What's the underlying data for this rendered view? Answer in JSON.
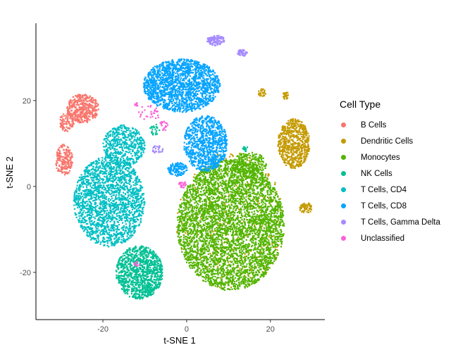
{
  "chart_data": {
    "type": "scatter",
    "title": "",
    "xlabel": "t-SNE 1",
    "ylabel": "t-SNE 2",
    "xlim": [
      -36,
      33
    ],
    "ylim": [
      -31,
      38
    ],
    "xticks": [
      -20,
      0,
      20
    ],
    "yticks": [
      -20,
      0,
      20
    ],
    "xtick_labels": [
      "-20",
      "0",
      "20"
    ],
    "ytick_labels": [
      "-20",
      "0",
      "20"
    ],
    "grid": false,
    "legend_position": "right",
    "legend_title": "Cell Type",
    "series": [
      {
        "name": "B Cells",
        "color": "#F8766D",
        "clusters": [
          {
            "x": -24.8,
            "y": 18.2,
            "rx": 3.8,
            "ry": 3.4,
            "n": 420
          },
          {
            "x": -28.7,
            "y": 15.0,
            "rx": 1.8,
            "ry": 2.2,
            "n": 90
          },
          {
            "x": -29.3,
            "y": 6.2,
            "rx": 2.1,
            "ry": 3.6,
            "n": 200
          }
        ]
      },
      {
        "name": "Dendritic Cells",
        "color": "#C49A00",
        "clusters": [
          {
            "x": 25.6,
            "y": 10.0,
            "rx": 3.8,
            "ry": 5.8,
            "n": 650
          },
          {
            "x": 18.0,
            "y": 21.8,
            "rx": 0.9,
            "ry": 0.9,
            "n": 30
          },
          {
            "x": 23.7,
            "y": 21.2,
            "rx": 0.8,
            "ry": 0.9,
            "n": 30
          },
          {
            "x": 28.5,
            "y": -5.0,
            "rx": 1.6,
            "ry": 1.2,
            "n": 60
          },
          {
            "x": 10.5,
            "y": -8.0,
            "rx": 13.0,
            "ry": 16.0,
            "n": 320
          }
        ]
      },
      {
        "name": "Monocytes",
        "color": "#53B400",
        "clusters": [
          {
            "x": 10.5,
            "y": -9.0,
            "rx": 12.8,
            "ry": 15.2,
            "n": 4200
          },
          {
            "x": 15.0,
            "y": 5.0,
            "rx": 4.0,
            "ry": 3.0,
            "n": 250
          }
        ]
      },
      {
        "name": "NK Cells",
        "color": "#00C094",
        "clusters": [
          {
            "x": -11.3,
            "y": -20.0,
            "rx": 5.6,
            "ry": 6.2,
            "n": 1050
          },
          {
            "x": -7.6,
            "y": 13.2,
            "rx": 1.2,
            "ry": 1.3,
            "n": 25
          },
          {
            "x": 14.0,
            "y": 8.7,
            "rx": 0.8,
            "ry": 0.8,
            "n": 15
          }
        ]
      },
      {
        "name": "T Cells, CD4",
        "color": "#00B6EB",
        "clusters": [],
        "note_color": "#00BFC4",
        "real_clusters": [
          {
            "x": -18.5,
            "y": -3.5,
            "rx": 8.5,
            "ry": 10.5,
            "n": 1900
          },
          {
            "x": -15.0,
            "y": 9.5,
            "rx": 5.0,
            "ry": 4.8,
            "n": 500
          }
        ]
      },
      {
        "name": "T Cells, CD8",
        "color": "#06A4FF",
        "clusters": [
          {
            "x": -1.2,
            "y": 23.5,
            "rx": 9.2,
            "ry": 6.2,
            "n": 1700
          },
          {
            "x": 4.5,
            "y": 10.0,
            "rx": 5.2,
            "ry": 6.5,
            "n": 900
          },
          {
            "x": -2.2,
            "y": 4.0,
            "rx": 2.3,
            "ry": 1.6,
            "n": 120
          }
        ]
      },
      {
        "name": "T Cells, Gamma Delta",
        "color": "#A58AFF",
        "clusters": [
          {
            "x": 7.0,
            "y": 34.0,
            "rx": 2.2,
            "ry": 1.2,
            "n": 110
          },
          {
            "x": 13.3,
            "y": 31.2,
            "rx": 1.2,
            "ry": 0.9,
            "n": 45
          },
          {
            "x": -7.0,
            "y": 8.6,
            "rx": 1.4,
            "ry": 0.9,
            "n": 25
          }
        ]
      },
      {
        "name": "Unclassified",
        "color": "#FB61D7",
        "clusters": [
          {
            "x": -9.0,
            "y": 17.0,
            "rx": 2.5,
            "ry": 2.0,
            "n": 30
          },
          {
            "x": -5.5,
            "y": 14.0,
            "rx": 1.2,
            "ry": 1.2,
            "n": 20
          },
          {
            "x": -1.0,
            "y": 0.5,
            "rx": 0.9,
            "ry": 0.8,
            "n": 25
          },
          {
            "x": -11.9,
            "y": -18.0,
            "rx": 0.7,
            "ry": 0.7,
            "n": 10
          },
          {
            "x": -12.0,
            "y": 19.0,
            "rx": 0.6,
            "ry": 0.6,
            "n": 8
          }
        ]
      }
    ]
  }
}
